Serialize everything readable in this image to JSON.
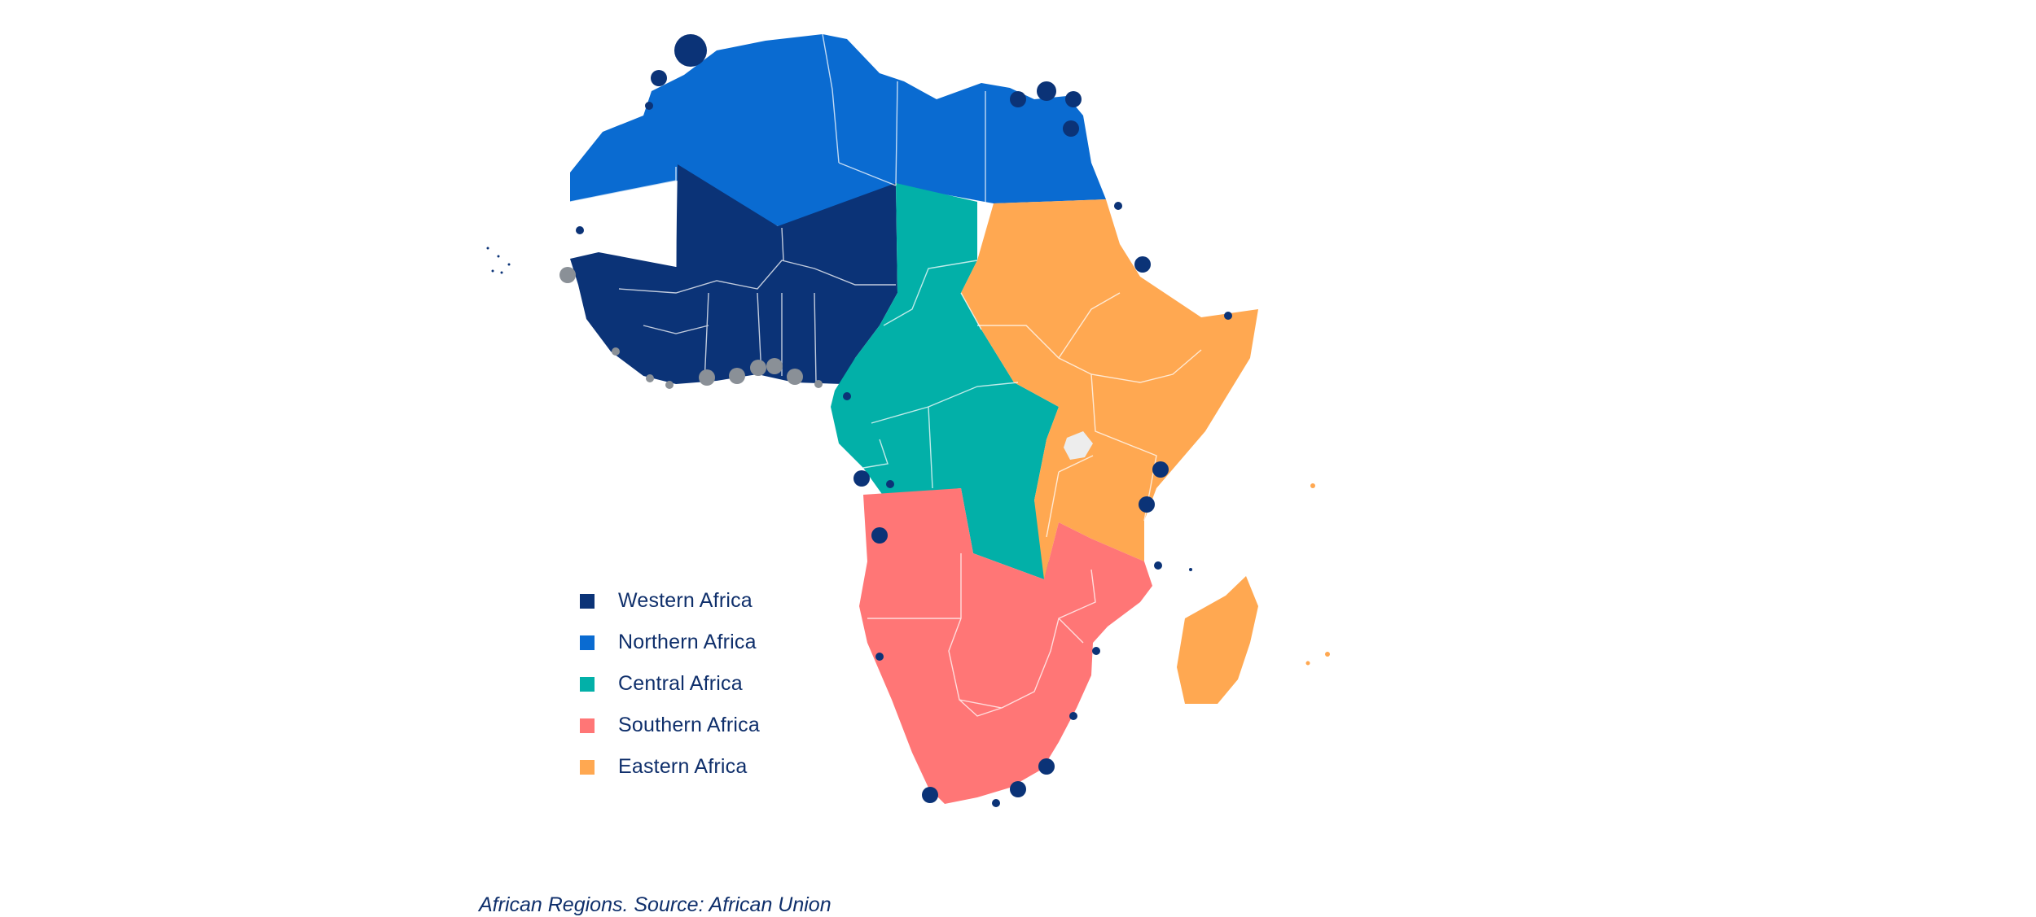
{
  "regions": [
    {
      "id": "western",
      "label": "Western Africa",
      "color": "#0b3377"
    },
    {
      "id": "northern",
      "label": "Northern Africa",
      "color": "#0a6bd1"
    },
    {
      "id": "central",
      "label": "Central Africa",
      "color": "#02b0a8"
    },
    {
      "id": "southern",
      "label": "Southern Africa",
      "color": "#ff7676"
    },
    {
      "id": "eastern",
      "label": "Eastern Africa",
      "color": "#ffa851"
    }
  ],
  "markers": {
    "port_color": "#0b3377",
    "secondary_color": "#8a9097"
  },
  "caption": "African Regions. Source: African Union"
}
